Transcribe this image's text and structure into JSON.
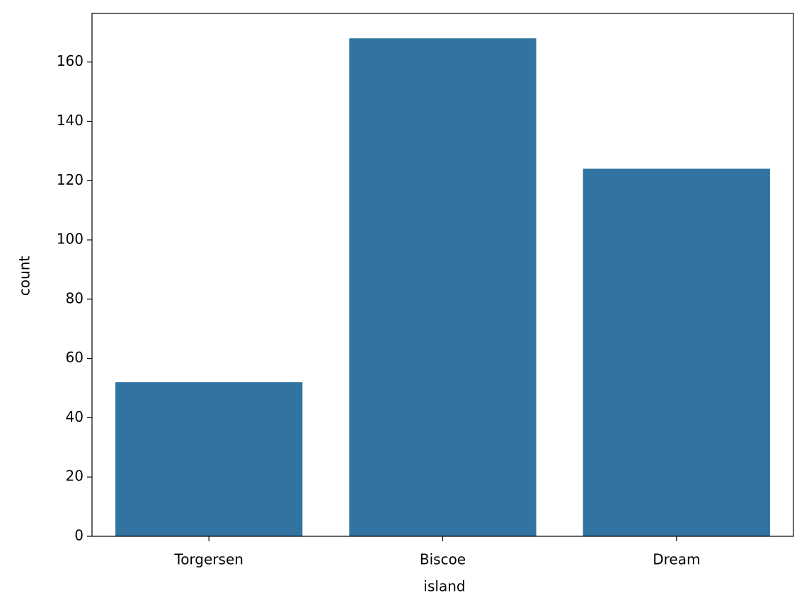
{
  "chart_data": {
    "type": "bar",
    "xlabel": "island",
    "ylabel": "count",
    "categories": [
      "Torgersen",
      "Biscoe",
      "Dream"
    ],
    "values": [
      52,
      168,
      124
    ],
    "color": "#3274a1",
    "ylim": [
      0,
      176.4
    ],
    "yticks": [
      0,
      20,
      40,
      60,
      80,
      100,
      120,
      140,
      160
    ],
    "grid": false
  }
}
